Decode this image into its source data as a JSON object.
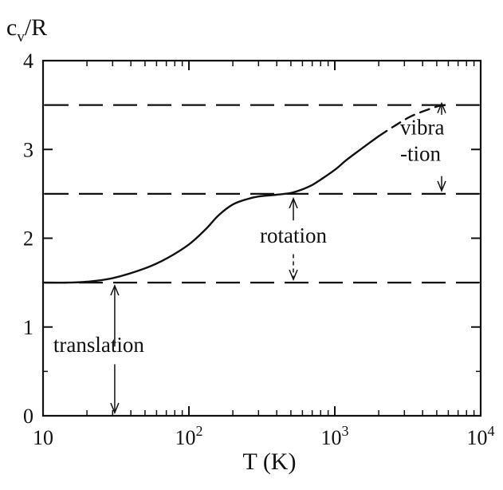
{
  "chart_data": {
    "type": "line",
    "xscale": "log",
    "xlim": [
      10,
      10000
    ],
    "ylim": [
      0,
      4
    ],
    "xlabel": "T (K)",
    "ylabel": "c_v/R",
    "ylabel_parts": {
      "main": "c",
      "sub": "v",
      "rest": "/R"
    },
    "xlabel_text": "T (K)",
    "x_ticks": [
      {
        "value": 10,
        "label": "10",
        "mantissa": "10",
        "exponent": ""
      },
      {
        "value": 100,
        "label": "10^2",
        "mantissa": "10",
        "exponent": "2"
      },
      {
        "value": 1000,
        "label": "10^3",
        "mantissa": "10",
        "exponent": "3"
      },
      {
        "value": 10000,
        "label": "10^4",
        "mantissa": "10",
        "exponent": "4"
      }
    ],
    "y_ticks": [
      0,
      1,
      2,
      3,
      4
    ],
    "y_tick_labels": [
      "0",
      "1",
      "2",
      "3",
      "4"
    ],
    "reference_lines": [
      1.5,
      2.5,
      3.5
    ],
    "series": [
      {
        "style": "solid",
        "x": [
          10,
          15,
          20,
          30,
          50,
          70,
          100,
          130,
          160,
          200,
          250,
          300,
          400,
          500,
          600,
          700,
          800,
          1000,
          1200,
          1500,
          2000
        ],
        "y": [
          1.5,
          1.5,
          1.51,
          1.55,
          1.66,
          1.77,
          1.93,
          2.1,
          2.26,
          2.38,
          2.44,
          2.47,
          2.49,
          2.51,
          2.55,
          2.6,
          2.66,
          2.77,
          2.88,
          3.0,
          3.15
        ]
      },
      {
        "style": "dashed",
        "x": [
          2000,
          2600,
          3300,
          4200,
          5200,
          6000
        ],
        "y": [
          3.15,
          3.27,
          3.37,
          3.44,
          3.49,
          3.5
        ]
      }
    ],
    "annotations": [
      {
        "text": "translation",
        "x": 31,
        "y_from": 0,
        "y_to": 1.5
      },
      {
        "text": "rotation",
        "x": 520,
        "y_from": 1.5,
        "y_to": 2.5
      },
      {
        "text_lines": [
          "vibra",
          "-tion"
        ],
        "x": 5400,
        "y_from": 2.5,
        "y_to": 3.5
      }
    ],
    "grid": false,
    "legend": "none"
  }
}
